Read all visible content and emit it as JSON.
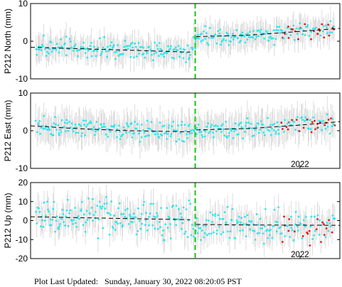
{
  "footer": {
    "label": "Plot Last Updated:",
    "timestamp": "Sunday, January 30, 2022 08:20:05 PST"
  },
  "colors": {
    "point": "#2ee6ec",
    "recent_point": "#e21a1a",
    "error_bar": "#d4d4d4",
    "trend": "#000000",
    "event_line": "#14c814"
  },
  "chart_data": [
    {
      "type": "scatter",
      "ylabel": "P212 North (mm)",
      "xlabel": "",
      "xlim": [
        2019.3,
        2022.4
      ],
      "ylim": [
        -10,
        10
      ],
      "yticks": [
        -10,
        0,
        10
      ],
      "xtick_labels": [],
      "event_line_x": 2020.95,
      "trend": [
        [
          2019.3,
          -1.6
        ],
        [
          2019.8,
          -2.0
        ],
        [
          2020.3,
          -2.4
        ],
        [
          2020.9,
          -2.9
        ],
        [
          2020.96,
          1.2
        ],
        [
          2021.5,
          1.6
        ],
        [
          2022.0,
          2.6
        ],
        [
          2022.4,
          3.4
        ]
      ],
      "scatter_sd": 1.2,
      "error_half": 4.0,
      "recent_start": 2021.8,
      "points_per_year": 110,
      "grid": false,
      "legend": "none"
    },
    {
      "type": "scatter",
      "ylabel": "P212 East (mm)",
      "xlabel": "",
      "xlim": [
        2019.3,
        2022.4
      ],
      "ylim": [
        -10,
        10
      ],
      "yticks": [
        -10,
        0,
        10
      ],
      "xtick_labels": [
        {
          "x": 2022.0,
          "label": "2022"
        }
      ],
      "event_line_x": 2020.95,
      "trend": [
        [
          2019.3,
          1.3
        ],
        [
          2019.8,
          0.5
        ],
        [
          2020.3,
          0.0
        ],
        [
          2020.9,
          -0.3
        ],
        [
          2020.96,
          0.2
        ],
        [
          2021.5,
          0.6
        ],
        [
          2022.0,
          1.5
        ],
        [
          2022.4,
          2.4
        ]
      ],
      "scatter_sd": 1.3,
      "error_half": 4.8,
      "recent_start": 2021.8,
      "points_per_year": 110,
      "grid": false,
      "legend": "none"
    },
    {
      "type": "scatter",
      "ylabel": "P212 Up (mm)",
      "xlabel": "",
      "xlim": [
        2019.3,
        2022.4
      ],
      "ylim": [
        -20,
        20
      ],
      "yticks": [
        -20,
        -10,
        0,
        10,
        20
      ],
      "xtick_labels": [
        {
          "x": 2022.0,
          "label": "2022"
        }
      ],
      "event_line_x": 2020.95,
      "trend": [
        [
          2019.3,
          2.0
        ],
        [
          2019.8,
          1.5
        ],
        [
          2020.3,
          1.0
        ],
        [
          2020.9,
          0.5
        ],
        [
          2020.96,
          -2.0
        ],
        [
          2021.5,
          -2.3
        ],
        [
          2022.0,
          -2.4
        ],
        [
          2022.4,
          -2.5
        ]
      ],
      "scatter_sd": 4.5,
      "error_half": 8.5,
      "recent_start": 2021.8,
      "points_per_year": 110,
      "grid": false,
      "legend": "none"
    }
  ]
}
